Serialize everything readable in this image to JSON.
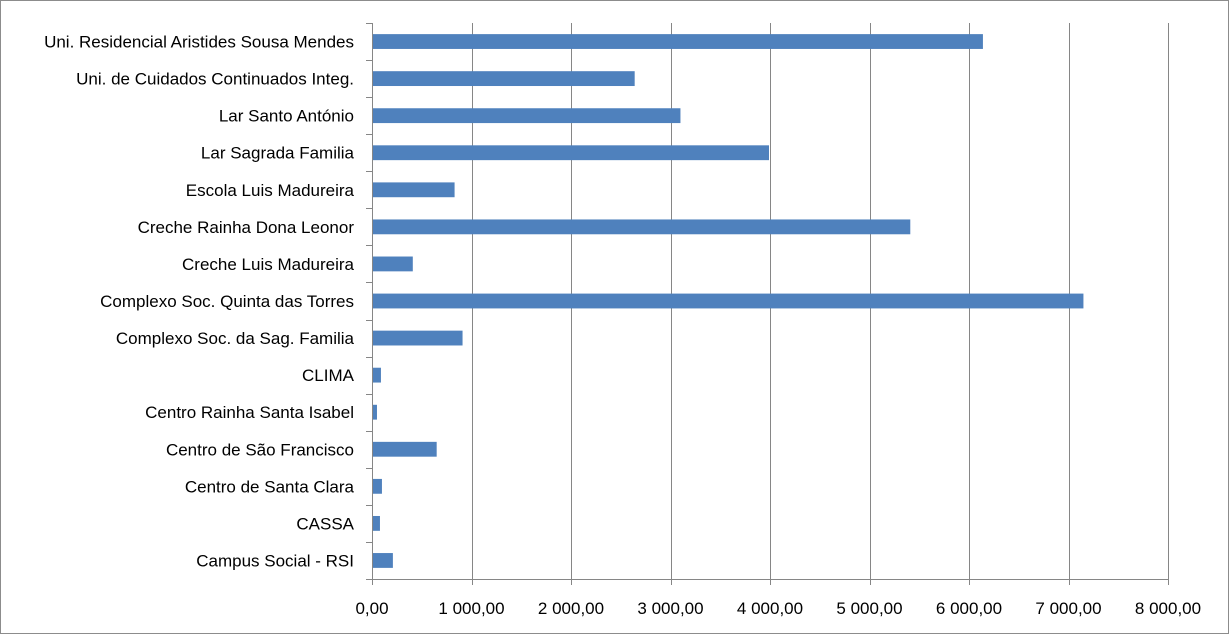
{
  "chart_data": {
    "type": "bar",
    "orientation": "horizontal",
    "title": "",
    "xlabel": "",
    "ylabel": "",
    "xlim": [
      0,
      8000
    ],
    "grid": "vertical",
    "legend": "none",
    "bar_color": "#4f81bd",
    "categories": [
      "Uni. Residencial Aristides Sousa Mendes",
      "Uni. de Cuidados Continuados Integ.",
      "Lar Santo António",
      "Lar Sagrada Familia",
      "Escola Luis Madureira",
      "Creche Rainha Dona Leonor",
      "Creche Luis Madureira",
      "Complexo Soc. Quinta das Torres",
      "Complexo Soc. da Sag. Familia",
      "CLIMA",
      "Centro Rainha Santa Isabel",
      "Centro de São Francisco",
      "Centro de Santa Clara",
      "CASSA",
      "Campus Social - RSI"
    ],
    "values": [
      6140,
      2640,
      3100,
      3990,
      830,
      5410,
      410,
      7150,
      910,
      90,
      50,
      650,
      100,
      80,
      210
    ],
    "ticks": [
      0,
      1000,
      2000,
      3000,
      4000,
      5000,
      6000,
      7000,
      8000
    ],
    "tick_labels": [
      "0,00",
      "1 000,00",
      "2 000,00",
      "3 000,00",
      "4 000,00",
      "5 000,00",
      "6 000,00",
      "7 000,00",
      "8 000,00"
    ]
  }
}
